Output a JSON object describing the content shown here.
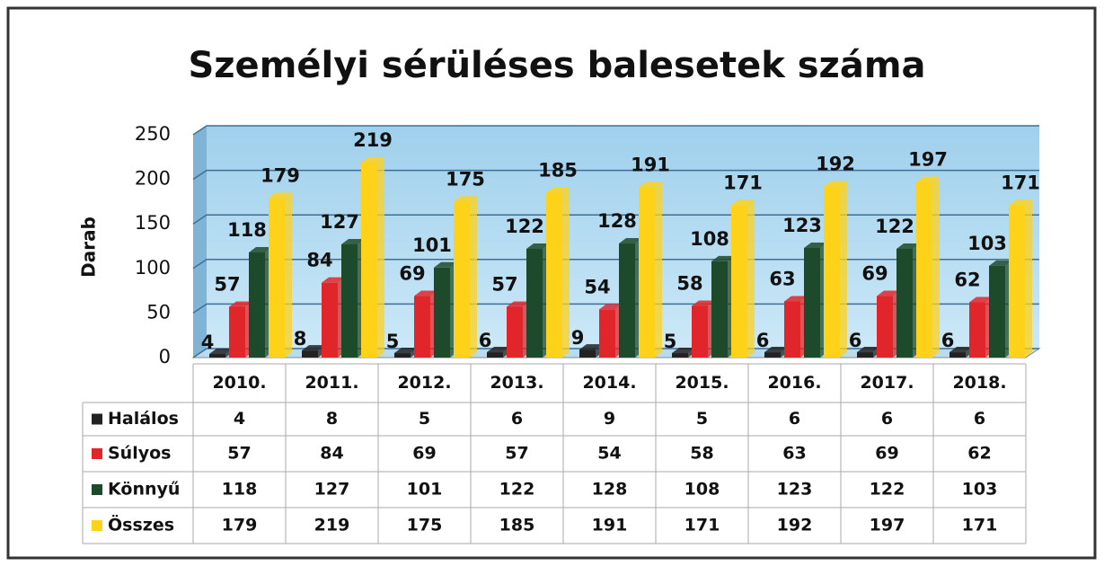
{
  "chart_data": {
    "type": "bar",
    "title": "Személyi sérüléses balesetek száma",
    "y_label": "Darab",
    "categories": [
      "2010.",
      "2011.",
      "2012.",
      "2013.",
      "2014.",
      "2015.",
      "2016.",
      "2017.",
      "2018."
    ],
    "series": [
      {
        "name": "Halálos",
        "color": "#222222",
        "values": [
          4,
          8,
          5,
          6,
          9,
          5,
          6,
          6,
          6
        ]
      },
      {
        "name": "Súlyos",
        "color": "#e0262a",
        "values": [
          57,
          84,
          69,
          57,
          54,
          58,
          63,
          69,
          62
        ]
      },
      {
        "name": "Könnyű",
        "color": "#1d4a2a",
        "values": [
          118,
          127,
          101,
          122,
          128,
          108,
          123,
          122,
          103
        ]
      },
      {
        "name": "Összes",
        "color": "#ffd21a",
        "values": [
          179,
          219,
          175,
          185,
          191,
          171,
          192,
          197,
          171
        ]
      }
    ],
    "ylim": [
      0,
      250
    ],
    "yticks": [
      0,
      50,
      100,
      150,
      200,
      250
    ],
    "grid": true
  }
}
